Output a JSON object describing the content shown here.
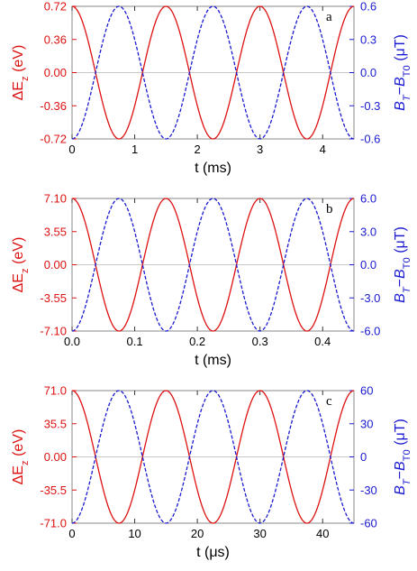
{
  "colors": {
    "left_axis": "#dd1111",
    "right_axis": "#1a1ad0",
    "frame": "#888888",
    "zero_line": "#c8c8c8"
  },
  "chart_data": [
    {
      "type": "line",
      "panel_label": "a",
      "xlabel": "t (ms)",
      "ylabel_left": "ΔE_z (eV)",
      "ylabel_right": "B_T−B_T0 (μT)",
      "xlim": [
        0,
        4.5
      ],
      "ylim_left": [
        -0.72,
        0.72
      ],
      "ylim_right": [
        -0.6,
        0.6
      ],
      "x_ticks": [
        "0",
        "1",
        "2",
        "3",
        "4"
      ],
      "x_tick_values": [
        0,
        1,
        2,
        3,
        4
      ],
      "y_ticks_left": [
        "0.72",
        "0.36",
        "0.00",
        "-0.36",
        "-0.72"
      ],
      "y_tick_values_left": [
        0.72,
        0.36,
        0,
        -0.36,
        -0.72
      ],
      "y_ticks_right": [
        "0.6",
        "0.3",
        "0.0",
        "-0.3",
        "-0.6"
      ],
      "y_tick_values_right": [
        0.6,
        0.3,
        0,
        -0.3,
        -0.6
      ],
      "series": [
        {
          "axis": "left",
          "style": "solid",
          "amplitude": 0.72,
          "period": 1.5,
          "phase": "cos"
        },
        {
          "axis": "right",
          "style": "dashed",
          "amplitude": 0.6,
          "period": 1.5,
          "phase": "-cos"
        }
      ]
    },
    {
      "type": "line",
      "panel_label": "b",
      "xlabel": "t (ms)",
      "ylabel_left": "ΔE_z (eV)",
      "ylabel_right": "B_T−B_T0 (μT)",
      "xlim": [
        0,
        0.45
      ],
      "ylim_left": [
        -7.1,
        7.1
      ],
      "ylim_right": [
        -6.0,
        6.0
      ],
      "x_ticks": [
        "0.0",
        "0.1",
        "0.2",
        "0.3",
        "0.4"
      ],
      "x_tick_values": [
        0,
        0.1,
        0.2,
        0.3,
        0.4
      ],
      "y_ticks_left": [
        "7.10",
        "3.55",
        "0.00",
        "-3.55",
        "-7.10"
      ],
      "y_tick_values_left": [
        7.1,
        3.55,
        0,
        -3.55,
        -7.1
      ],
      "y_ticks_right": [
        "6.0",
        "3.0",
        "0.0",
        "-3.0",
        "-6.0"
      ],
      "y_tick_values_right": [
        6,
        3,
        0,
        -3,
        -6
      ],
      "series": [
        {
          "axis": "left",
          "style": "solid",
          "amplitude": 7.1,
          "period": 0.15,
          "phase": "cos"
        },
        {
          "axis": "right",
          "style": "dashed",
          "amplitude": 6.0,
          "period": 0.15,
          "phase": "-cos"
        }
      ]
    },
    {
      "type": "line",
      "panel_label": "c",
      "xlabel": "t (μs)",
      "ylabel_left": "ΔE_z (eV)",
      "ylabel_right": "B_T−B_T0 (μT)",
      "xlim": [
        0,
        45
      ],
      "ylim_left": [
        -71.0,
        71.0
      ],
      "ylim_right": [
        -60,
        60
      ],
      "x_ticks": [
        "0",
        "10",
        "20",
        "30",
        "40"
      ],
      "x_tick_values": [
        0,
        10,
        20,
        30,
        40
      ],
      "y_ticks_left": [
        "71.0",
        "35.5",
        "0.00",
        "-35.5",
        "-71.0"
      ],
      "y_tick_values_left": [
        71,
        35.5,
        0,
        -35.5,
        -71
      ],
      "y_ticks_right": [
        "60",
        "30",
        "0",
        "-30",
        "-60"
      ],
      "y_tick_values_right": [
        60,
        30,
        0,
        -30,
        -60
      ],
      "series": [
        {
          "axis": "left",
          "style": "solid",
          "amplitude": 71.0,
          "period": 15,
          "phase": "cos"
        },
        {
          "axis": "right",
          "style": "dashed",
          "amplitude": 60,
          "period": 15,
          "phase": "-cos"
        }
      ]
    }
  ]
}
